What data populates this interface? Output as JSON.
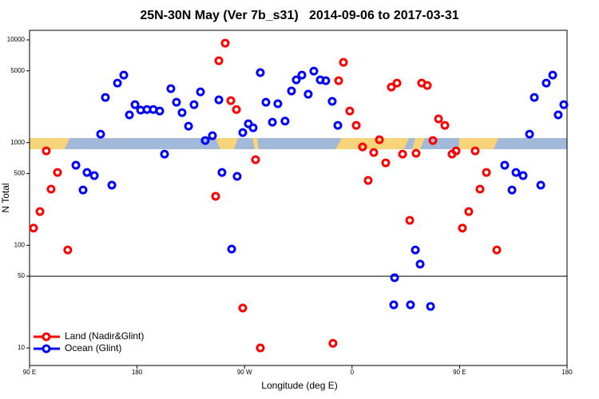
{
  "chart_data": {
    "type": "scatter",
    "title": "25N-30N May (Ver 7b_s31)   2014-09-06 to 2017-03-31",
    "x_label": "Longitude (deg E)",
    "y_label": "N Total",
    "log_y": true,
    "xlim": [
      90,
      540
    ],
    "ylim": [
      6.75,
      12400
    ],
    "xticks": [
      {
        "value": 90,
        "label": "90 E"
      },
      180,
      {
        "value": 270,
        "label": "90 W"
      },
      {
        "value": 360,
        "label": "0"
      },
      {
        "value": 450,
        "label": "90 E"
      },
      {
        "value": 540,
        "label": "180"
      }
    ],
    "yticks": [
      10,
      50,
      100,
      500,
      1000,
      5000,
      10000
    ],
    "hline": 50,
    "legend": "bottom-left",
    "series": [
      {
        "name": "Land (Nadir&Glint)",
        "color": "#ff0000",
        "x": [
          93.3,
          98.7,
          104,
          108,
          113.4,
          122,
          245.8,
          248.5,
          253.8,
          258.5,
          263.2,
          268.5,
          279.2,
          283.2,
          344,
          348.8,
          352.8,
          358.1,
          363.5,
          368.8,
          373.5,
          378.2,
          382.9,
          388.2,
          392.9,
          397.6,
          402.3,
          408.3,
          413.6,
          418.3,
          423,
          427.7,
          432.4,
          437.7,
          443.7,
          447.1,
          452.4,
          457.7,
          463.1,
          467.1,
          472.5,
          481.2
        ],
        "values": [
          147,
          213,
          830,
          352,
          512,
          90,
          300,
          6270,
          9290,
          2560,
          2100,
          24.5,
          682,
          10,
          11.1,
          4010,
          6050,
          2030,
          1470,
          908,
          428,
          801,
          1067,
          635,
          3470,
          3800,
          773,
          175,
          787,
          3800,
          3600,
          1048,
          1700,
          1470,
          773,
          830,
          147,
          213,
          830,
          352,
          512,
          90
        ]
      },
      {
        "name": "Ocean (Glint)",
        "color": "#0000ff",
        "x": [
          128.8,
          134.8,
          138.1,
          144.2,
          149.5,
          153.5,
          158.9,
          163.6,
          168.9,
          173.6,
          178.3,
          183,
          188.3,
          193.6,
          199,
          203,
          208.3,
          213,
          217.7,
          223.1,
          227.7,
          233.1,
          237.1,
          243.1,
          248.5,
          251.1,
          259.2,
          263.8,
          268.5,
          273.2,
          277.2,
          283.2,
          287.9,
          293.3,
          297.9,
          303.9,
          309.3,
          313.3,
          318,
          323.3,
          328,
          333.4,
          338,
          343.4,
          348.1,
          395.6,
          394.9,
          408.9,
          413,
          417,
          425.7,
          487.8,
          493.9,
          497.2,
          503.2,
          508.6,
          512.6,
          518,
          522.6,
          528,
          532.6,
          537.3
        ],
        "values": [
          602,
          345,
          512,
          477,
          1208,
          2750,
          385,
          3800,
          4540,
          1860,
          2340,
          2070,
          2100,
          2100,
          2030,
          773,
          3350,
          2470,
          1960,
          1446,
          2340,
          3120,
          1048,
          1167,
          2610,
          512,
          91.9,
          469,
          1253,
          1525,
          1395,
          4800,
          2470,
          1580,
          2390,
          1620,
          3180,
          4080,
          4540,
          2960,
          4970,
          4080,
          4010,
          2520,
          1470,
          48.3,
          26.3,
          26.3,
          90,
          65.5,
          25.4,
          602,
          345,
          512,
          477,
          1208,
          2750,
          385,
          3800,
          4540,
          1860,
          2340
        ]
      }
    ]
  }
}
